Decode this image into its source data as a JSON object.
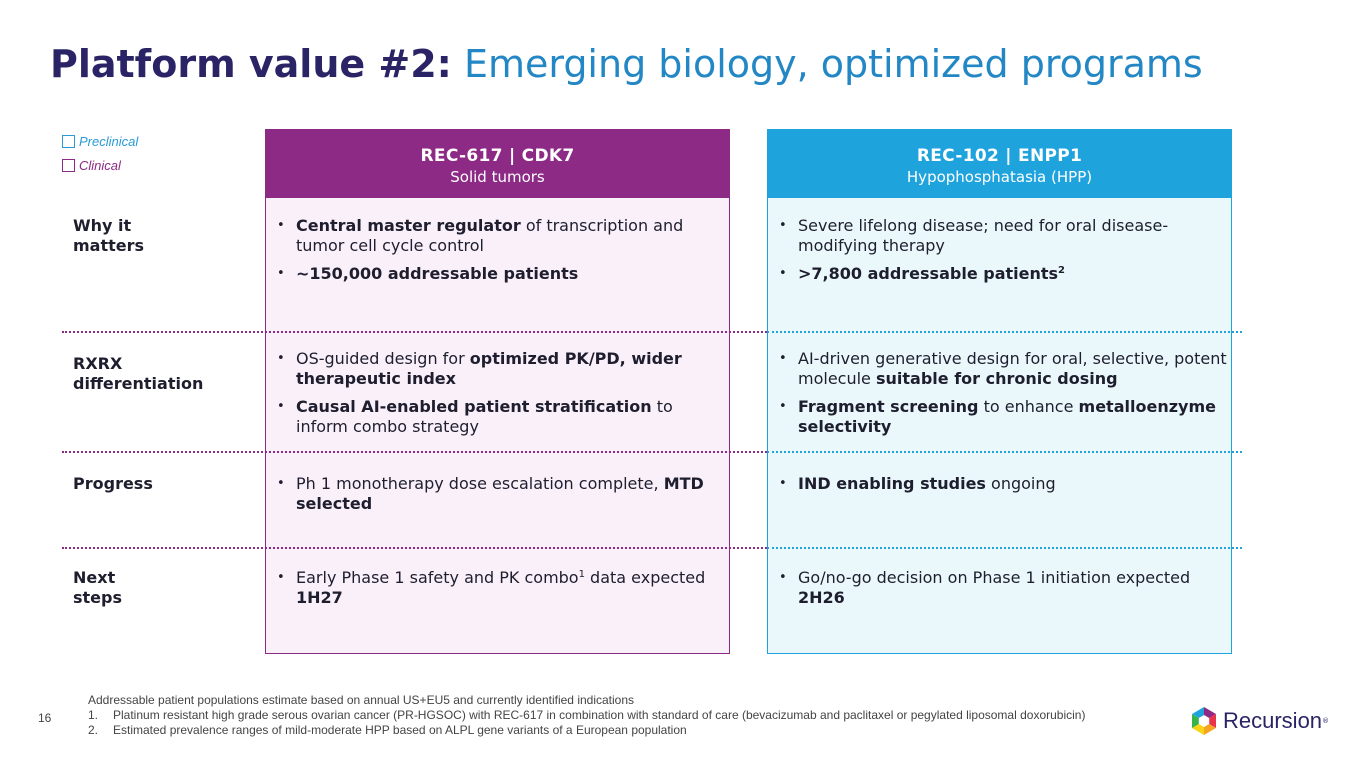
{
  "title": {
    "bold": "Platform value #2:",
    "light": "Emerging biology, optimized programs"
  },
  "legend": {
    "preclinical": "Preclinical",
    "clinical": "Clinical"
  },
  "programs": [
    {
      "name": "REC-617 | CDK7",
      "indication": "Solid tumors",
      "color": "#8c2a86"
    },
    {
      "name": "REC-102 | ENPP1",
      "indication": "Hypophosphatasia (HPP)",
      "color": "#1fa3dc"
    }
  ],
  "rows": {
    "why": "Why it\nmatters",
    "rxrx": "RXRX\ndifferentiation",
    "progress": "Progress",
    "next": "Next\nsteps"
  },
  "cells": {
    "c1_why_1_b": "Central master regulator",
    "c1_why_1_t": " of transcription and tumor cell cycle control",
    "c1_why_2_b": "~150,000 addressable patients",
    "c2_why_1_t": "Severe lifelong disease; need for oral disease-modifying therapy",
    "c2_why_2_b": ">7,800 addressable patients",
    "c2_why_2_sup": "2",
    "c1_rx_1_t": "OS-guided design for ",
    "c1_rx_1_b": "optimized PK/PD, wider therapeutic index",
    "c1_rx_2_b": "Causal AI-enabled patient stratification",
    "c1_rx_2_t": " to inform combo strategy",
    "c2_rx_1_t": "AI-driven generative design for oral, selective, potent molecule ",
    "c2_rx_1_b": "suitable for chronic dosing",
    "c2_rx_2_b": "Fragment screening",
    "c2_rx_2_t": " to enhance ",
    "c2_rx_2_b2": "metalloenzyme selectivity",
    "c1_pr_1_t": "Ph 1 monotherapy dose escalation complete, ",
    "c1_pr_1_b": "MTD selected",
    "c2_pr_1_b": "IND enabling studies",
    "c2_pr_1_t": " ongoing",
    "c1_nx_1_t": "Early Phase 1 safety and PK combo",
    "c1_nx_1_sup": "1",
    "c1_nx_1_t2": " data expected ",
    "c1_nx_1_b": "1H27",
    "c2_nx_1_t": "Go/no-go decision on Phase 1 initiation expected ",
    "c2_nx_1_b": "2H26"
  },
  "footer": {
    "intro": "Addressable patient populations estimate based on annual US+EU5 and currently identified indications",
    "note1_num": "1.",
    "note1": "Platinum resistant high grade serous ovarian cancer (PR-HGSOC) with REC-617 in combination with standard of care (bevacizumab and paclitaxel or pegylated liposomal doxorubicin)",
    "note2_num": "2.",
    "note2": "Estimated prevalence ranges of mild-moderate HPP based on ALPL gene variants of a European population"
  },
  "page_number": "16",
  "logo": {
    "text": "Recursion",
    "reg": "®"
  }
}
